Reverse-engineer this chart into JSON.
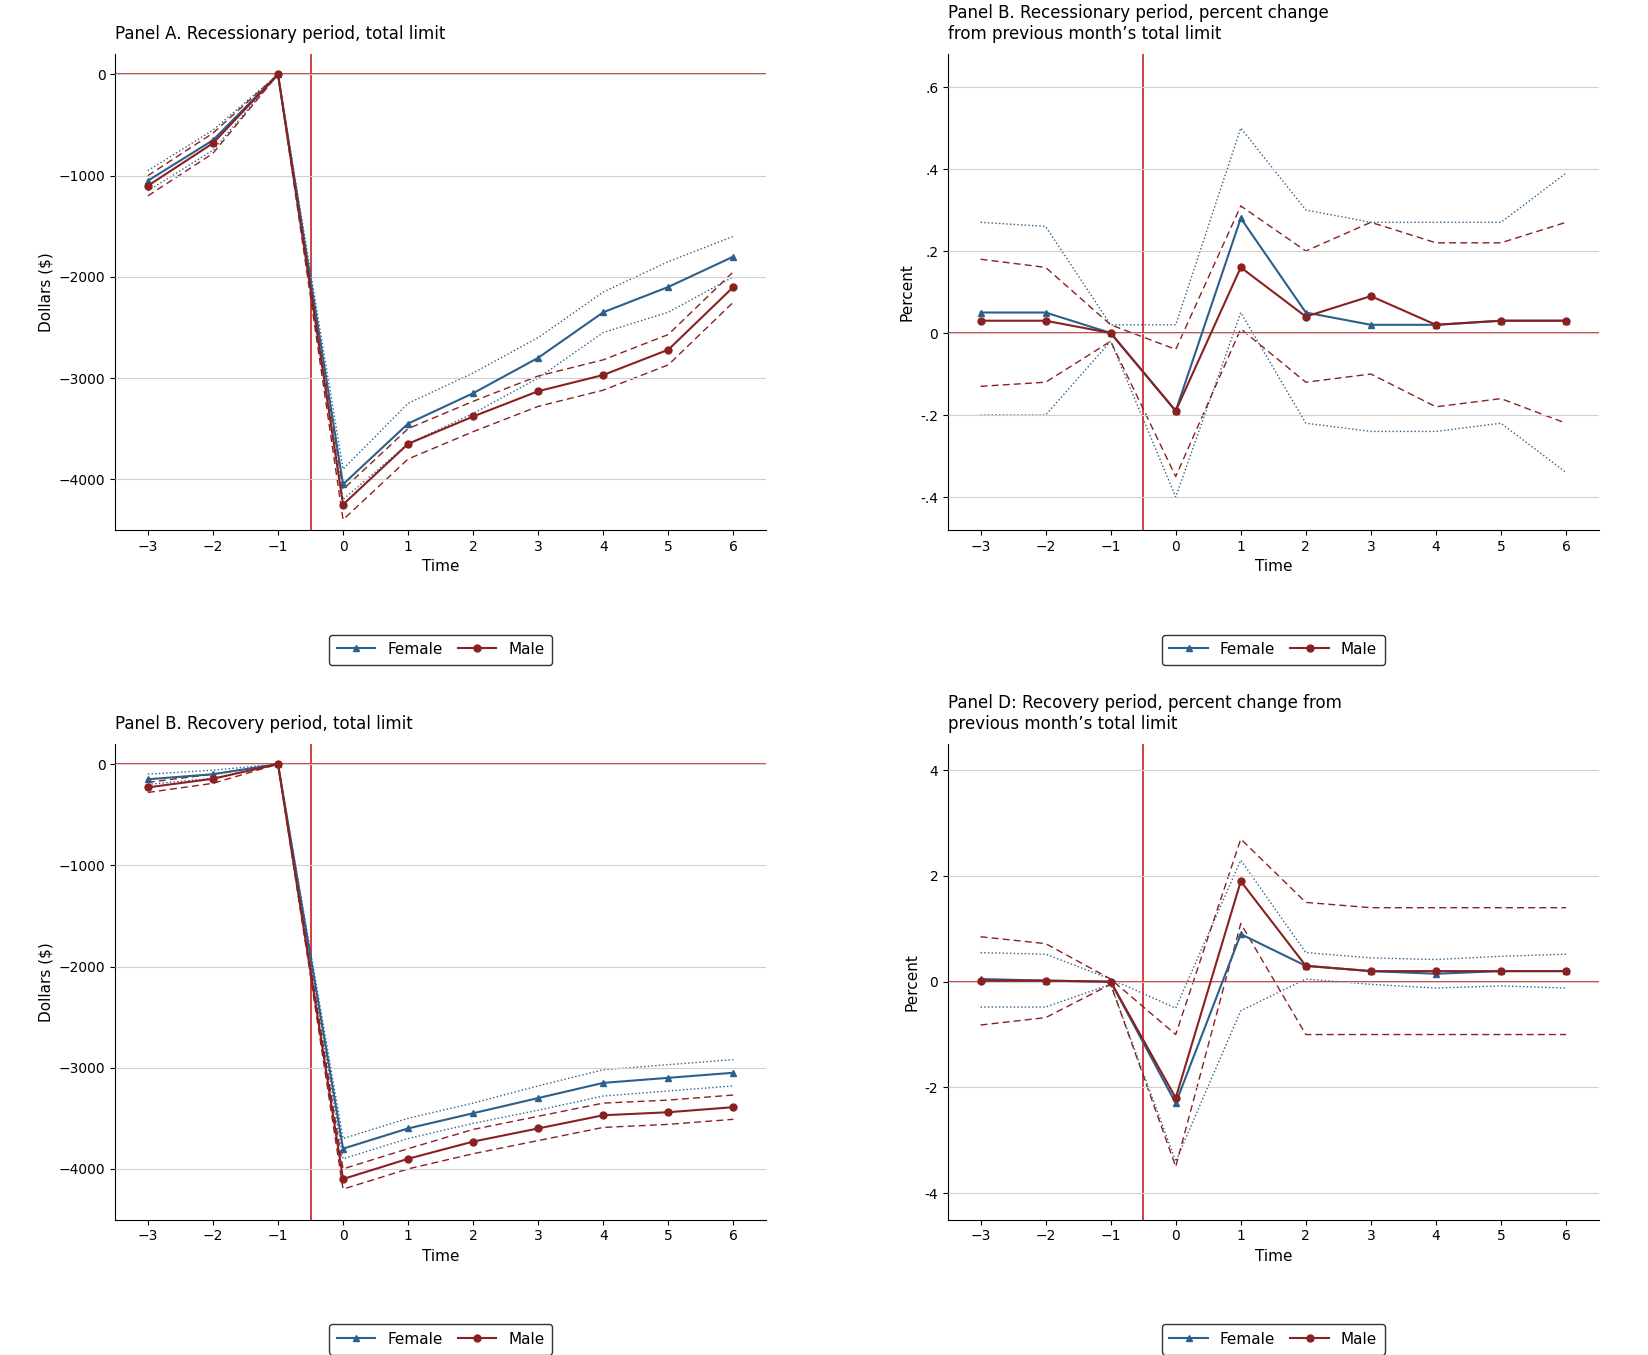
{
  "panel_A": {
    "title": "Panel A. Recessionary period, total limit",
    "time": [
      -3,
      -2,
      -1,
      0,
      1,
      2,
      3,
      4,
      5,
      6
    ],
    "female_main": [
      -1050,
      -650,
      0,
      -4050,
      -3450,
      -3150,
      -2800,
      -2350,
      -2100,
      -1800
    ],
    "female_ci_upper": [
      -950,
      -550,
      0,
      -3900,
      -3250,
      -2950,
      -2600,
      -2150,
      -1850,
      -1600
    ],
    "female_ci_lower": [
      -1150,
      -750,
      0,
      -4200,
      -3650,
      -3350,
      -3000,
      -2550,
      -2350,
      -2000
    ],
    "male_main": [
      -1100,
      -680,
      0,
      -4250,
      -3650,
      -3380,
      -3130,
      -2970,
      -2720,
      -2100
    ],
    "male_ci_upper": [
      -1000,
      -580,
      0,
      -4100,
      -3500,
      -3230,
      -2980,
      -2820,
      -2570,
      -1950
    ],
    "male_ci_lower": [
      -1200,
      -780,
      0,
      -4400,
      -3800,
      -3530,
      -3280,
      -3120,
      -2870,
      -2250
    ],
    "ylabel": "Dollars ($)",
    "ylim": [
      -4500,
      200
    ],
    "yticks": [
      0,
      -1000,
      -2000,
      -3000,
      -4000
    ]
  },
  "panel_B": {
    "title": "Panel B. Recessionary period, percent change\nfrom previous month’s total limit",
    "time": [
      -3,
      -2,
      -1,
      0,
      1,
      2,
      3,
      4,
      5,
      6
    ],
    "female_main": [
      0.05,
      0.05,
      0.0,
      -0.19,
      0.28,
      0.05,
      0.02,
      0.02,
      0.03,
      0.03
    ],
    "female_ci_upper": [
      0.27,
      0.26,
      0.02,
      0.02,
      0.5,
      0.3,
      0.27,
      0.27,
      0.27,
      0.39
    ],
    "female_ci_lower": [
      -0.2,
      -0.2,
      -0.02,
      -0.4,
      0.05,
      -0.22,
      -0.24,
      -0.24,
      -0.22,
      -0.34
    ],
    "male_main": [
      0.03,
      0.03,
      0.0,
      -0.19,
      0.16,
      0.04,
      0.09,
      0.02,
      0.03,
      0.03
    ],
    "male_ci_upper": [
      0.18,
      0.16,
      0.02,
      -0.04,
      0.31,
      0.2,
      0.27,
      0.22,
      0.22,
      0.27
    ],
    "male_ci_lower": [
      -0.13,
      -0.12,
      -0.02,
      -0.35,
      0.01,
      -0.12,
      -0.1,
      -0.18,
      -0.16,
      -0.22
    ],
    "ylabel": "Percent",
    "ylim": [
      -0.48,
      0.68
    ],
    "yticks": [
      -0.4,
      -0.2,
      0.0,
      0.2,
      0.4,
      0.6
    ],
    "yticklabels": [
      "-.4",
      "-.2",
      "0",
      ".2",
      ".4",
      ".6"
    ]
  },
  "panel_C": {
    "title": "Panel B. Recovery period, total limit",
    "time": [
      -3,
      -2,
      -1,
      0,
      1,
      2,
      3,
      4,
      5,
      6
    ],
    "female_main": [
      -150,
      -100,
      0,
      -3800,
      -3600,
      -3450,
      -3300,
      -3150,
      -3100,
      -3050
    ],
    "female_ci_upper": [
      -100,
      -60,
      0,
      -3700,
      -3500,
      -3350,
      -3180,
      -3020,
      -2970,
      -2920
    ],
    "female_ci_lower": [
      -200,
      -140,
      0,
      -3900,
      -3700,
      -3550,
      -3420,
      -3280,
      -3230,
      -3180
    ],
    "male_main": [
      -230,
      -145,
      0,
      -4100,
      -3900,
      -3730,
      -3600,
      -3470,
      -3440,
      -3390
    ],
    "male_ci_upper": [
      -180,
      -100,
      0,
      -4000,
      -3800,
      -3610,
      -3480,
      -3350,
      -3320,
      -3270
    ],
    "male_ci_lower": [
      -280,
      -190,
      0,
      -4200,
      -4000,
      -3850,
      -3720,
      -3590,
      -3560,
      -3510
    ],
    "ylabel": "Dollars ($)",
    "ylim": [
      -4500,
      200
    ],
    "yticks": [
      0,
      -1000,
      -2000,
      -3000,
      -4000
    ]
  },
  "panel_D": {
    "title": "Panel D: Recovery period, percent change from\nprevious month’s total limit",
    "time": [
      -3,
      -2,
      -1,
      0,
      1,
      2,
      3,
      4,
      5,
      6
    ],
    "female_main": [
      0.05,
      0.02,
      0.0,
      -2.3,
      0.9,
      0.3,
      0.2,
      0.15,
      0.2,
      0.2
    ],
    "female_ci_upper": [
      0.55,
      0.52,
      0.05,
      -0.5,
      2.3,
      0.55,
      0.45,
      0.42,
      0.48,
      0.52
    ],
    "female_ci_lower": [
      -0.48,
      -0.48,
      -0.05,
      -3.4,
      -0.55,
      0.05,
      -0.05,
      -0.12,
      -0.08,
      -0.12
    ],
    "male_main": [
      0.02,
      0.02,
      0.0,
      -2.2,
      1.9,
      0.3,
      0.2,
      0.2,
      0.2,
      0.2
    ],
    "male_ci_upper": [
      0.85,
      0.72,
      0.05,
      -1.0,
      2.7,
      1.5,
      1.4,
      1.4,
      1.4,
      1.4
    ],
    "male_ci_lower": [
      -0.82,
      -0.68,
      -0.05,
      -3.5,
      1.1,
      -1.0,
      -1.0,
      -1.0,
      -1.0,
      -1.0
    ],
    "ylabel": "Percent",
    "ylim": [
      -4.5,
      4.5
    ],
    "yticks": [
      -4,
      -2,
      0,
      2,
      4
    ],
    "yticklabels": [
      "-4",
      "-2",
      "0",
      "2",
      "4"
    ]
  },
  "female_color": "#2c5f8a",
  "male_color": "#8b2020",
  "vline_color": "#cc3333",
  "hline_color": "#cc3333",
  "grid_color": "#d0d0d0",
  "time_ticks": [
    -3,
    -2,
    -1,
    0,
    1,
    2,
    3,
    4,
    5,
    6
  ]
}
